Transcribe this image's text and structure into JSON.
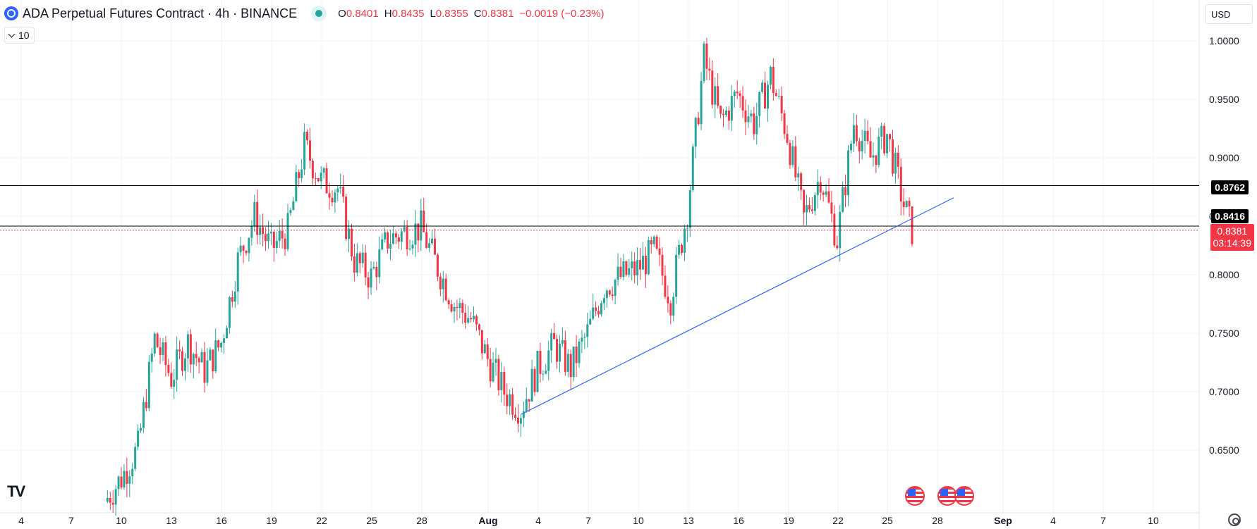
{
  "header": {
    "title": "ADA Perpetual Futures Contract · 4h · BINANCE",
    "ohlc": [
      {
        "k": "O",
        "v": "0.8401"
      },
      {
        "k": "H",
        "v": "0.8435"
      },
      {
        "k": "L",
        "v": "0.8355"
      },
      {
        "k": "C",
        "v": "0.8381"
      }
    ],
    "change": "−0.0019 (−0.23%)"
  },
  "indicator_toggle": {
    "label": "10"
  },
  "currency": {
    "label": "USD"
  },
  "price_labels": {
    "level_1": "0.8762",
    "level_2": "0.8416",
    "current_price": "0.8381",
    "countdown": "03:14:39"
  },
  "colors": {
    "up": "#26a69a",
    "down": "#f23645",
    "trendline": "#2962ff",
    "grid": "#f0f3fa"
  },
  "chart_data": {
    "type": "candlestick",
    "symbol": "ADA Perpetual Futures Contract",
    "interval": "4h",
    "exchange": "BINANCE",
    "y_ticks": [
      1.0,
      0.95,
      0.9,
      0.85,
      0.8,
      0.75,
      0.7,
      0.65
    ],
    "y_tick_labels": [
      "1.0000",
      "0.9500",
      "0.9000",
      "0.8500",
      "0.8000",
      "0.7500",
      "0.7000",
      "0.6500"
    ],
    "x_tick_labels": [
      "4",
      "7",
      "10",
      "13",
      "16",
      "19",
      "22",
      "25",
      "28",
      "Aug",
      "4",
      "7",
      "10",
      "13",
      "16",
      "19",
      "22",
      "25",
      "28",
      "Sep",
      "4",
      "7",
      "10"
    ],
    "horizontal_lines": [
      0.8762,
      0.8416
    ],
    "current_price": 0.8381,
    "trendline": {
      "from": {
        "date": "Aug 3",
        "price": 0.6805
      },
      "to": {
        "date": "Aug 29",
        "price": 0.8658
      }
    },
    "price_path": [
      {
        "date": "Jul 9",
        "price": 0.606
      },
      {
        "date": "Jul 10",
        "price": 0.626
      },
      {
        "date": "Jul 11",
        "price": 0.652
      },
      {
        "date": "Jul 12",
        "price": 0.745
      },
      {
        "date": "Jul 13",
        "price": 0.712
      },
      {
        "date": "Jul 14",
        "price": 0.742
      },
      {
        "date": "Jul 15",
        "price": 0.718
      },
      {
        "date": "Jul 16",
        "price": 0.742
      },
      {
        "date": "Jul 17",
        "price": 0.812
      },
      {
        "date": "Jul 18",
        "price": 0.85
      },
      {
        "date": "Jul 19",
        "price": 0.822
      },
      {
        "date": "Jul 20",
        "price": 0.838
      },
      {
        "date": "Jul 21",
        "price": 0.91
      },
      {
        "date": "Jul 22",
        "price": 0.88
      },
      {
        "date": "Jul 23",
        "price": 0.874
      },
      {
        "date": "Jul 24",
        "price": 0.812
      },
      {
        "date": "Jul 25",
        "price": 0.798
      },
      {
        "date": "Jul 26",
        "price": 0.83
      },
      {
        "date": "Jul 27",
        "price": 0.836
      },
      {
        "date": "Jul 28",
        "price": 0.84
      },
      {
        "date": "Jul 29",
        "price": 0.806
      },
      {
        "date": "Jul 30",
        "price": 0.775
      },
      {
        "date": "Jul 31",
        "price": 0.762
      },
      {
        "date": "Aug 1",
        "price": 0.728
      },
      {
        "date": "Aug 2",
        "price": 0.7
      },
      {
        "date": "Aug 3",
        "price": 0.685
      },
      {
        "date": "Aug 4",
        "price": 0.72
      },
      {
        "date": "Aug 5",
        "price": 0.74
      },
      {
        "date": "Aug 6",
        "price": 0.72
      },
      {
        "date": "Aug 7",
        "price": 0.75
      },
      {
        "date": "Aug 8",
        "price": 0.79
      },
      {
        "date": "Aug 9",
        "price": 0.798
      },
      {
        "date": "Aug 10",
        "price": 0.805
      },
      {
        "date": "Aug 11",
        "price": 0.82
      },
      {
        "date": "Aug 12",
        "price": 0.78
      },
      {
        "date": "Aug 13",
        "price": 0.855
      },
      {
        "date": "Aug 14",
        "price": 0.985
      },
      {
        "date": "Aug 15",
        "price": 0.93
      },
      {
        "date": "Aug 16",
        "price": 0.955
      },
      {
        "date": "Aug 17",
        "price": 0.93
      },
      {
        "date": "Aug 18",
        "price": 0.97
      },
      {
        "date": "Aug 19",
        "price": 0.92
      },
      {
        "date": "Aug 20",
        "price": 0.848
      },
      {
        "date": "Aug 21",
        "price": 0.885
      },
      {
        "date": "Aug 22",
        "price": 0.83
      },
      {
        "date": "Aug 23",
        "price": 0.93
      },
      {
        "date": "Aug 24",
        "price": 0.9
      },
      {
        "date": "Aug 25",
        "price": 0.92
      },
      {
        "date": "Aug 26",
        "price": 0.86
      },
      {
        "date": "Aug 26.5",
        "price": 0.838
      }
    ]
  }
}
